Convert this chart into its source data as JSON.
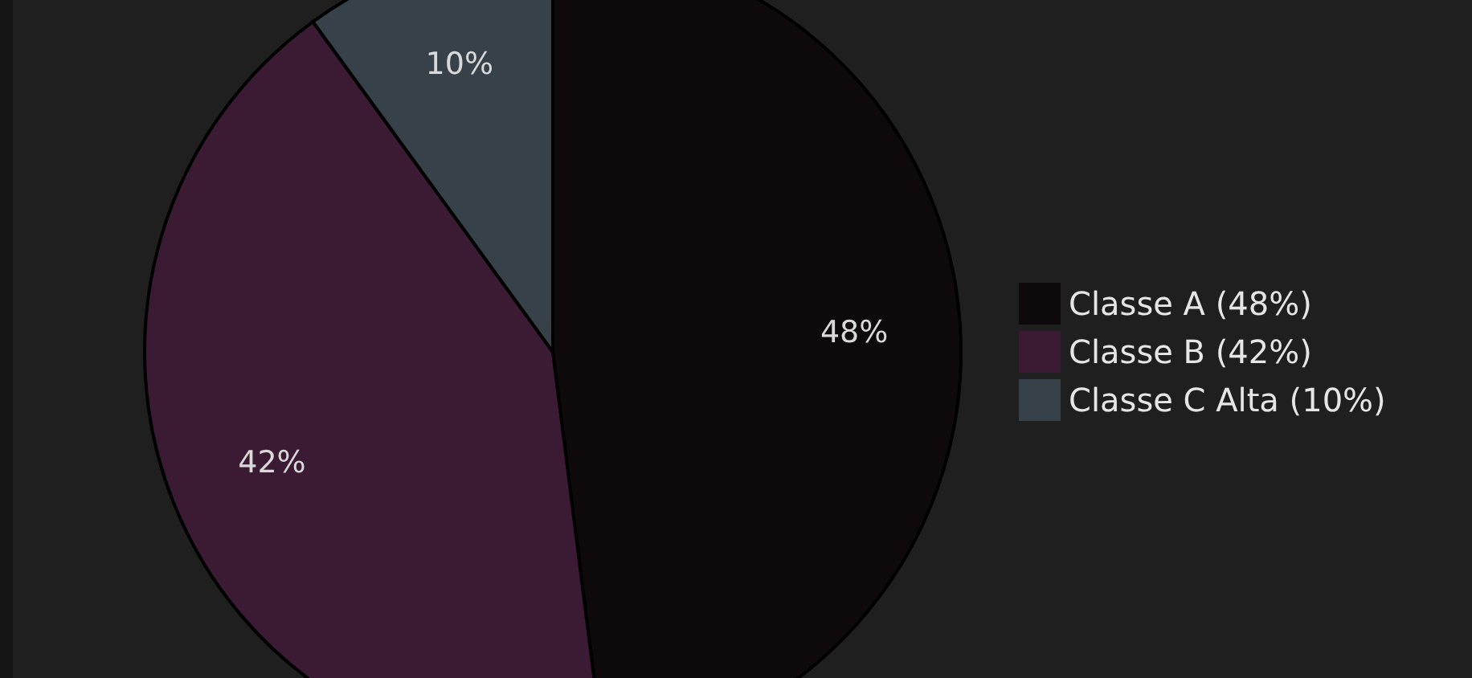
{
  "chart_data": {
    "type": "pie",
    "categories": [
      "Classe A (48%)",
      "Classe B (42%)",
      "Classe C Alta (10%)"
    ],
    "values": [
      48,
      42,
      10
    ],
    "colors": [
      "#0e0a0b",
      "#3b1a33",
      "#37414a"
    ],
    "value_labels": [
      "48%",
      "42%",
      "10%"
    ],
    "legend": "right"
  }
}
